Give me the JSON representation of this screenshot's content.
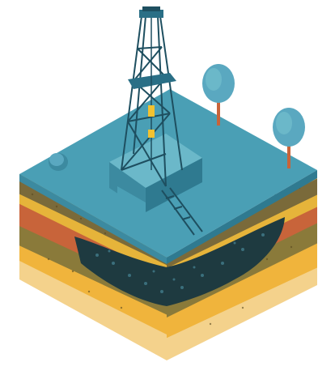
{
  "illustration": {
    "subject": "oil-derrick-on-geological-block",
    "colors": {
      "background": "#ffffff",
      "ground_top": "#4a9fb5",
      "ground_top_light": "#6bb8c9",
      "side_left_shade": "#3c8aa0",
      "layer_topsoil_brown": "#7a6a3a",
      "layer_ochre": "#e6b43a",
      "layer_rust": "#c8643a",
      "layer_olive": "#8a7a3a",
      "layer_oil": "#1e3a40",
      "layer_gold": "#f0b43c",
      "layer_sand": "#f4d28c",
      "derrick": "#2a6f86",
      "derrick_dark": "#1e4f60",
      "tree_crown": "#5aa8c0",
      "tree_trunk": "#c8643a",
      "accent_yellow": "#f2c230"
    }
  }
}
